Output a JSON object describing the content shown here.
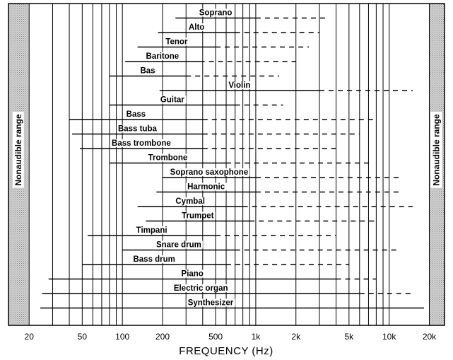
{
  "chart_data": {
    "type": "range-bar",
    "xlabel": "FREQUENCY  (Hz)",
    "xscale": "log",
    "xlim": [
      14,
      26000
    ],
    "xticks": [
      {
        "value": 20,
        "label": "20"
      },
      {
        "value": 50,
        "label": "50"
      },
      {
        "value": 100,
        "label": "100"
      },
      {
        "value": 200,
        "label": "200"
      },
      {
        "value": 500,
        "label": "500"
      },
      {
        "value": 1000,
        "label": "1k"
      },
      {
        "value": 2000,
        "label": "2k"
      },
      {
        "value": 5000,
        "label": "5k"
      },
      {
        "value": 10000,
        "label": "10k"
      },
      {
        "value": 20000,
        "label": "20k"
      }
    ],
    "grid": true,
    "shaded_regions": [
      {
        "from": 14,
        "to": 20,
        "label": "Nonaudible range"
      },
      {
        "from": 20000,
        "to": 26000,
        "label": "Nonaudible range"
      }
    ],
    "series_styles": [
      "solid = fundamental range",
      "dashed = harmonics range"
    ],
    "instruments": [
      {
        "name": "Soprano",
        "fundamental": [
          250,
          1000
        ],
        "harmonics_to": 3500
      },
      {
        "name": "Alto",
        "fundamental": [
          185,
          700
        ],
        "harmonics_to": 3000
      },
      {
        "name": "Tenor",
        "fundamental": [
          130,
          500
        ],
        "harmonics_to": 2500
      },
      {
        "name": "Baritone",
        "fundamental": [
          105,
          380
        ],
        "harmonics_to": 2000
      },
      {
        "name": "Bas",
        "fundamental": [
          80,
          300
        ],
        "harmonics_to": 1500
      },
      {
        "name": "Violin",
        "fundamental": [
          190,
          3000
        ],
        "harmonics_to": 15000
      },
      {
        "name": "Guitar",
        "fundamental": [
          80,
          700
        ],
        "harmonics_to": 1600
      },
      {
        "name": "Bass",
        "fundamental": [
          40,
          400
        ],
        "harmonics_to": 8000
      },
      {
        "name": "Bass tuba",
        "fundamental": [
          42,
          400
        ],
        "harmonics_to": 6000
      },
      {
        "name": "Bass trombone",
        "fundamental": [
          48,
          400
        ],
        "harmonics_to": 4000
      },
      {
        "name": "Trombone",
        "fundamental": [
          80,
          600
        ],
        "harmonics_to": 7500
      },
      {
        "name": "Soprano saxophone",
        "fundamental": [
          200,
          1000
        ],
        "harmonics_to": 12000
      },
      {
        "name": "Harmonic",
        "fundamental": [
          180,
          1000
        ],
        "harmonics_to": 12000
      },
      {
        "name": "Cymbal",
        "fundamental": [
          130,
          800
        ],
        "harmonics_to": 15000
      },
      {
        "name": "Trumpet",
        "fundamental": [
          150,
          900
        ],
        "harmonics_to": 8000
      },
      {
        "name": "Timpani",
        "fundamental": [
          55,
          500
        ],
        "harmonics_to": 4000
      },
      {
        "name": "Snare drum",
        "fundamental": [
          100,
          700
        ],
        "harmonics_to": 12000
      },
      {
        "name": "Bass drum",
        "fundamental": [
          50,
          600
        ],
        "harmonics_to": 5000
      },
      {
        "name": "Piano",
        "fundamental": [
          28,
          4000
        ],
        "harmonics_to": 8000
      },
      {
        "name": "Electric organ",
        "fundamental": [
          25,
          6000
        ],
        "harmonics_to": 15000
      },
      {
        "name": "Synthesizer",
        "fundamental": [
          20,
          20000
        ],
        "harmonics_to": 20000
      }
    ]
  }
}
